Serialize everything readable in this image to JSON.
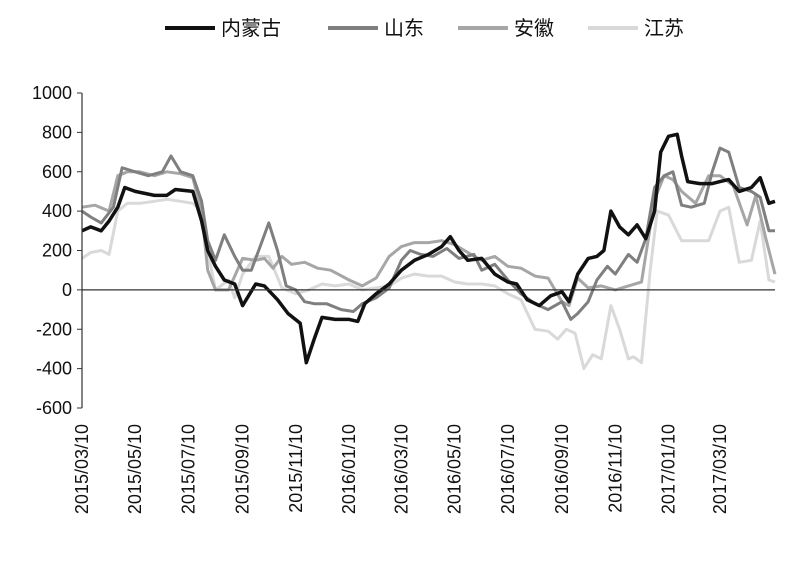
{
  "chart_data": {
    "type": "line",
    "title": "",
    "xlabel": "",
    "ylabel": "",
    "ylim": [
      -600,
      1000
    ],
    "yticks": [
      1000,
      800,
      600,
      400,
      200,
      0,
      -200,
      -400,
      -600
    ],
    "xlim": [
      "2015-03-10",
      "2017-05-12"
    ],
    "xtick_labels": [
      "2015/03/10",
      "2015/05/10",
      "2015/07/10",
      "2015/09/10",
      "2015/11/10",
      "2016/01/10",
      "2016/03/10",
      "2016/05/10",
      "2016/07/10",
      "2016/09/10",
      "2016/11/10",
      "2017/01/10",
      "2017/03/10"
    ],
    "xtick_dates": [
      "2015-03-10",
      "2015-05-10",
      "2015-07-10",
      "2015-09-10",
      "2015-11-10",
      "2016-01-10",
      "2016-03-10",
      "2016-05-10",
      "2016-07-10",
      "2016-09-10",
      "2016-11-10",
      "2017-01-10",
      "2017-03-10"
    ],
    "grid": false,
    "legend_position": "top",
    "series": [
      {
        "name": "内蒙古",
        "color": "#111111",
        "points": [
          [
            "2015-03-10",
            300
          ],
          [
            "2015-03-20",
            320
          ],
          [
            "2015-04-01",
            300
          ],
          [
            "2015-04-10",
            350
          ],
          [
            "2015-04-20",
            420
          ],
          [
            "2015-04-28",
            520
          ],
          [
            "2015-05-10",
            500
          ],
          [
            "2015-06-01",
            480
          ],
          [
            "2015-06-15",
            480
          ],
          [
            "2015-06-25",
            510
          ],
          [
            "2015-07-15",
            500
          ],
          [
            "2015-07-25",
            350
          ],
          [
            "2015-08-01",
            200
          ],
          [
            "2015-08-10",
            120
          ],
          [
            "2015-08-20",
            50
          ],
          [
            "2015-09-01",
            30
          ],
          [
            "2015-09-10",
            -80
          ],
          [
            "2015-09-25",
            30
          ],
          [
            "2015-10-05",
            20
          ],
          [
            "2015-10-20",
            -50
          ],
          [
            "2015-11-01",
            -120
          ],
          [
            "2015-11-15",
            -170
          ],
          [
            "2015-11-22",
            -370
          ],
          [
            "2015-12-01",
            -250
          ],
          [
            "2015-12-10",
            -140
          ],
          [
            "2015-12-25",
            -150
          ],
          [
            "2016-01-10",
            -150
          ],
          [
            "2016-01-20",
            -160
          ],
          [
            "2016-01-28",
            -70
          ],
          [
            "2016-02-10",
            -20
          ],
          [
            "2016-02-25",
            30
          ],
          [
            "2016-03-10",
            100
          ],
          [
            "2016-03-25",
            150
          ],
          [
            "2016-04-10",
            180
          ],
          [
            "2016-04-25",
            220
          ],
          [
            "2016-05-05",
            270
          ],
          [
            "2016-05-15",
            200
          ],
          [
            "2016-05-25",
            150
          ],
          [
            "2016-06-10",
            160
          ],
          [
            "2016-06-25",
            80
          ],
          [
            "2016-07-10",
            40
          ],
          [
            "2016-07-20",
            30
          ],
          [
            "2016-08-01",
            -50
          ],
          [
            "2016-08-15",
            -80
          ],
          [
            "2016-08-28",
            -30
          ],
          [
            "2016-09-10",
            -10
          ],
          [
            "2016-09-18",
            -60
          ],
          [
            "2016-09-28",
            80
          ],
          [
            "2016-10-10",
            160
          ],
          [
            "2016-10-20",
            170
          ],
          [
            "2016-10-28",
            200
          ],
          [
            "2016-11-05",
            400
          ],
          [
            "2016-11-15",
            320
          ],
          [
            "2016-11-25",
            280
          ],
          [
            "2016-12-05",
            330
          ],
          [
            "2016-12-15",
            260
          ],
          [
            "2016-12-25",
            400
          ],
          [
            "2017-01-01",
            700
          ],
          [
            "2017-01-10",
            780
          ],
          [
            "2017-01-20",
            790
          ],
          [
            "2017-01-25",
            680
          ],
          [
            "2017-02-01",
            550
          ],
          [
            "2017-02-15",
            540
          ],
          [
            "2017-03-01",
            540
          ],
          [
            "2017-03-10",
            550
          ],
          [
            "2017-03-20",
            560
          ],
          [
            "2017-04-01",
            500
          ],
          [
            "2017-04-15",
            520
          ],
          [
            "2017-04-25",
            570
          ],
          [
            "2017-05-05",
            440
          ],
          [
            "2017-05-12",
            450
          ]
        ]
      },
      {
        "name": "山东",
        "color": "#7f7f7f",
        "points": [
          [
            "2015-03-10",
            400
          ],
          [
            "2015-03-20",
            370
          ],
          [
            "2015-04-01",
            340
          ],
          [
            "2015-04-15",
            420
          ],
          [
            "2015-04-25",
            620
          ],
          [
            "2015-05-10",
            600
          ],
          [
            "2015-05-25",
            580
          ],
          [
            "2015-06-10",
            600
          ],
          [
            "2015-06-20",
            680
          ],
          [
            "2015-07-01",
            600
          ],
          [
            "2015-07-15",
            580
          ],
          [
            "2015-07-25",
            450
          ],
          [
            "2015-08-01",
            250
          ],
          [
            "2015-08-10",
            150
          ],
          [
            "2015-08-20",
            280
          ],
          [
            "2015-09-01",
            170
          ],
          [
            "2015-09-10",
            100
          ],
          [
            "2015-09-20",
            100
          ],
          [
            "2015-09-30",
            220
          ],
          [
            "2015-10-10",
            340
          ],
          [
            "2015-10-20",
            200
          ],
          [
            "2015-10-30",
            20
          ],
          [
            "2015-11-10",
            0
          ],
          [
            "2015-11-20",
            -60
          ],
          [
            "2015-12-01",
            -70
          ],
          [
            "2015-12-15",
            -70
          ],
          [
            "2016-01-01",
            -100
          ],
          [
            "2016-01-15",
            -110
          ],
          [
            "2016-01-25",
            -70
          ],
          [
            "2016-02-10",
            -40
          ],
          [
            "2016-02-25",
            10
          ],
          [
            "2016-03-10",
            150
          ],
          [
            "2016-03-20",
            200
          ],
          [
            "2016-04-01",
            180
          ],
          [
            "2016-04-15",
            170
          ],
          [
            "2016-05-01",
            210
          ],
          [
            "2016-05-15",
            160
          ],
          [
            "2016-06-01",
            180
          ],
          [
            "2016-06-10",
            100
          ],
          [
            "2016-06-25",
            130
          ],
          [
            "2016-07-10",
            50
          ],
          [
            "2016-07-25",
            -20
          ],
          [
            "2016-08-10",
            -70
          ],
          [
            "2016-08-25",
            -100
          ],
          [
            "2016-09-10",
            -60
          ],
          [
            "2016-09-20",
            -150
          ],
          [
            "2016-09-28",
            -120
          ],
          [
            "2016-10-10",
            -60
          ],
          [
            "2016-10-20",
            50
          ],
          [
            "2016-11-01",
            120
          ],
          [
            "2016-11-10",
            80
          ],
          [
            "2016-11-25",
            180
          ],
          [
            "2016-12-05",
            140
          ],
          [
            "2016-12-15",
            260
          ],
          [
            "2016-12-25",
            520
          ],
          [
            "2017-01-05",
            580
          ],
          [
            "2017-01-15",
            600
          ],
          [
            "2017-01-25",
            430
          ],
          [
            "2017-02-05",
            420
          ],
          [
            "2017-02-20",
            440
          ],
          [
            "2017-03-01",
            600
          ],
          [
            "2017-03-10",
            720
          ],
          [
            "2017-03-20",
            700
          ],
          [
            "2017-04-01",
            520
          ],
          [
            "2017-04-15",
            500
          ],
          [
            "2017-04-25",
            470
          ],
          [
            "2017-05-05",
            300
          ],
          [
            "2017-05-12",
            300
          ]
        ]
      },
      {
        "name": "安徽",
        "color": "#a6a6a6",
        "points": [
          [
            "2015-03-10",
            420
          ],
          [
            "2015-03-25",
            430
          ],
          [
            "2015-04-10",
            400
          ],
          [
            "2015-04-20",
            580
          ],
          [
            "2015-05-01",
            600
          ],
          [
            "2015-05-15",
            600
          ],
          [
            "2015-06-01",
            580
          ],
          [
            "2015-06-15",
            600
          ],
          [
            "2015-07-01",
            590
          ],
          [
            "2015-07-15",
            570
          ],
          [
            "2015-07-25",
            400
          ],
          [
            "2015-08-01",
            100
          ],
          [
            "2015-08-10",
            0
          ],
          [
            "2015-08-25",
            0
          ],
          [
            "2015-09-10",
            160
          ],
          [
            "2015-09-25",
            150
          ],
          [
            "2015-10-05",
            160
          ],
          [
            "2015-10-15",
            110
          ],
          [
            "2015-10-25",
            170
          ],
          [
            "2015-11-05",
            130
          ],
          [
            "2015-11-20",
            140
          ],
          [
            "2015-12-05",
            110
          ],
          [
            "2015-12-20",
            100
          ],
          [
            "2016-01-10",
            50
          ],
          [
            "2016-01-25",
            20
          ],
          [
            "2016-02-10",
            60
          ],
          [
            "2016-02-25",
            170
          ],
          [
            "2016-03-10",
            220
          ],
          [
            "2016-03-25",
            240
          ],
          [
            "2016-04-10",
            240
          ],
          [
            "2016-04-25",
            250
          ],
          [
            "2016-05-10",
            230
          ],
          [
            "2016-05-25",
            190
          ],
          [
            "2016-06-10",
            150
          ],
          [
            "2016-06-25",
            170
          ],
          [
            "2016-07-10",
            120
          ],
          [
            "2016-07-25",
            110
          ],
          [
            "2016-08-10",
            70
          ],
          [
            "2016-08-25",
            60
          ],
          [
            "2016-09-10",
            -60
          ],
          [
            "2016-09-18",
            -80
          ],
          [
            "2016-09-28",
            60
          ],
          [
            "2016-10-10",
            10
          ],
          [
            "2016-10-25",
            20
          ],
          [
            "2016-11-10",
            0
          ],
          [
            "2016-11-25",
            20
          ],
          [
            "2016-12-10",
            40
          ],
          [
            "2016-12-25",
            460
          ],
          [
            "2017-01-05",
            580
          ],
          [
            "2017-01-15",
            560
          ],
          [
            "2017-01-25",
            500
          ],
          [
            "2017-02-10",
            440
          ],
          [
            "2017-02-25",
            580
          ],
          [
            "2017-03-10",
            580
          ],
          [
            "2017-03-25",
            530
          ],
          [
            "2017-04-10",
            330
          ],
          [
            "2017-04-20",
            480
          ],
          [
            "2017-05-01",
            270
          ],
          [
            "2017-05-12",
            80
          ]
        ]
      },
      {
        "name": "江苏",
        "color": "#d9d9d9",
        "points": [
          [
            "2015-03-10",
            160
          ],
          [
            "2015-03-20",
            190
          ],
          [
            "2015-04-01",
            200
          ],
          [
            "2015-04-10",
            180
          ],
          [
            "2015-04-20",
            400
          ],
          [
            "2015-05-01",
            440
          ],
          [
            "2015-05-15",
            440
          ],
          [
            "2015-06-01",
            450
          ],
          [
            "2015-06-15",
            460
          ],
          [
            "2015-07-01",
            450
          ],
          [
            "2015-07-15",
            440
          ],
          [
            "2015-07-25",
            400
          ],
          [
            "2015-08-01",
            200
          ],
          [
            "2015-08-10",
            0
          ],
          [
            "2015-08-25",
            50
          ],
          [
            "2015-09-01",
            -40
          ],
          [
            "2015-09-10",
            80
          ],
          [
            "2015-09-25",
            170
          ],
          [
            "2015-10-10",
            170
          ],
          [
            "2015-10-25",
            10
          ],
          [
            "2015-11-10",
            -20
          ],
          [
            "2015-11-25",
            0
          ],
          [
            "2015-12-10",
            30
          ],
          [
            "2015-12-25",
            20
          ],
          [
            "2016-01-10",
            30
          ],
          [
            "2016-01-25",
            0
          ],
          [
            "2016-02-10",
            10
          ],
          [
            "2016-02-25",
            20
          ],
          [
            "2016-03-10",
            60
          ],
          [
            "2016-03-25",
            80
          ],
          [
            "2016-04-10",
            70
          ],
          [
            "2016-04-25",
            70
          ],
          [
            "2016-05-10",
            40
          ],
          [
            "2016-05-25",
            30
          ],
          [
            "2016-06-10",
            30
          ],
          [
            "2016-06-25",
            20
          ],
          [
            "2016-07-10",
            -20
          ],
          [
            "2016-07-25",
            -50
          ],
          [
            "2016-08-10",
            -200
          ],
          [
            "2016-08-25",
            -210
          ],
          [
            "2016-09-05",
            -250
          ],
          [
            "2016-09-15",
            -200
          ],
          [
            "2016-09-25",
            -220
          ],
          [
            "2016-10-05",
            -400
          ],
          [
            "2016-10-15",
            -330
          ],
          [
            "2016-10-25",
            -350
          ],
          [
            "2016-11-05",
            -80
          ],
          [
            "2016-11-15",
            -200
          ],
          [
            "2016-11-25",
            -350
          ],
          [
            "2016-12-01",
            -340
          ],
          [
            "2016-12-10",
            -370
          ],
          [
            "2016-12-20",
            100
          ],
          [
            "2016-12-28",
            400
          ],
          [
            "2017-01-10",
            380
          ],
          [
            "2017-01-25",
            250
          ],
          [
            "2017-02-10",
            250
          ],
          [
            "2017-02-25",
            250
          ],
          [
            "2017-03-10",
            400
          ],
          [
            "2017-03-20",
            420
          ],
          [
            "2017-04-01",
            140
          ],
          [
            "2017-04-15",
            150
          ],
          [
            "2017-04-25",
            350
          ],
          [
            "2017-05-05",
            50
          ],
          [
            "2017-05-12",
            40
          ]
        ]
      }
    ]
  }
}
